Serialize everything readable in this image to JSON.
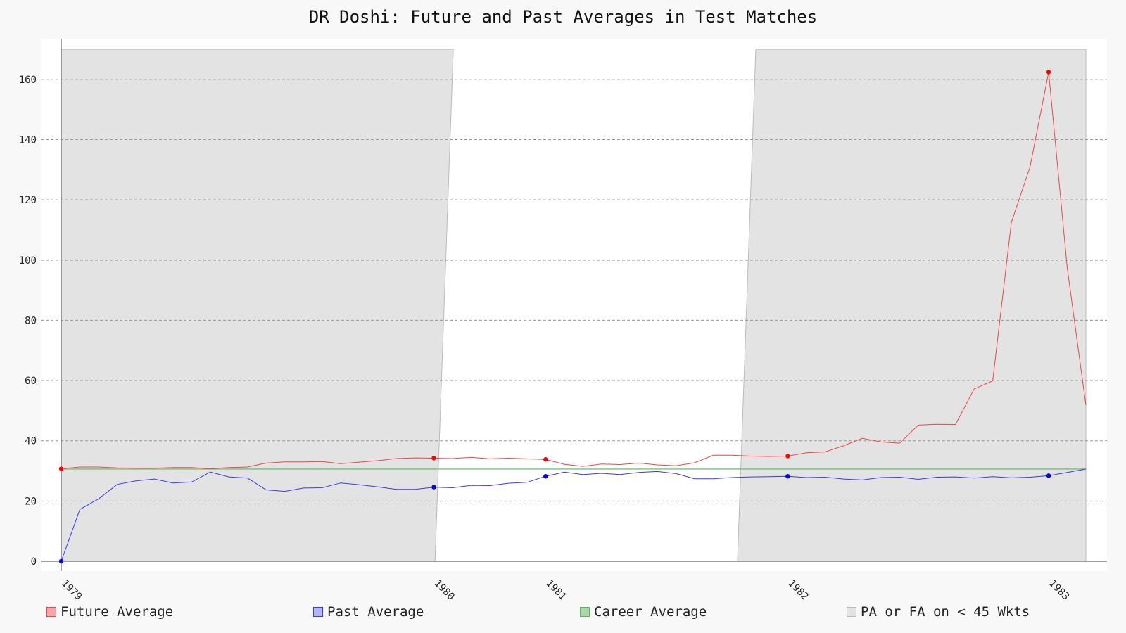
{
  "chart_data": {
    "type": "line",
    "title": "DR Doshi: Future and Past Averages in Test Matches",
    "xlabel": "",
    "ylabel": "",
    "ylim": [
      0,
      170
    ],
    "y_ticks": [
      0,
      20,
      40,
      60,
      80,
      100,
      120,
      140,
      160
    ],
    "x_ticks": [
      "1979",
      "1980",
      "1981",
      "1982",
      "1983"
    ],
    "grid": true,
    "legend_position": "bottom",
    "matches": 56,
    "tick_match_index": [
      0,
      20,
      26,
      39,
      53
    ],
    "shaded_bands": [
      {
        "label": "PA or FA on < 45 Wkts",
        "from_match": 0,
        "to_match": 21.5
      },
      {
        "label": "PA or FA on < 45 Wkts",
        "from_match": 36.3,
        "to_match": 55
      }
    ],
    "series": [
      {
        "name": "Future Average",
        "color": "#e8474b",
        "marker_indices": [
          0,
          20,
          26,
          39,
          53
        ],
        "values": [
          30.7,
          31.3,
          31.3,
          31.0,
          30.9,
          30.9,
          31.1,
          31.1,
          30.7,
          31.1,
          31.3,
          32.6,
          33.0,
          33.0,
          33.1,
          32.4,
          32.9,
          33.4,
          34.1,
          34.3,
          34.2,
          34.1,
          34.5,
          34.0,
          34.2,
          34.0,
          33.8,
          32.2,
          31.5,
          32.3,
          32.1,
          32.6,
          32.0,
          31.7,
          32.7,
          35.2,
          35.2,
          34.9,
          34.8,
          34.9,
          36.0,
          36.3,
          38.4,
          40.8,
          39.6,
          39.2,
          45.2,
          45.5,
          45.4,
          57.2,
          59.9,
          112.5,
          130.9,
          162.4,
          97.4,
          51.8
        ]
      },
      {
        "name": "Past Average",
        "color": "#3a3af0",
        "marker_indices": [
          0,
          20,
          26,
          39,
          53
        ],
        "values": [
          0.0,
          17.2,
          20.7,
          25.5,
          26.7,
          27.3,
          26.0,
          26.3,
          29.6,
          28.0,
          27.6,
          23.7,
          23.2,
          24.3,
          24.4,
          26.0,
          25.4,
          24.7,
          23.9,
          23.9,
          24.6,
          24.4,
          25.2,
          25.1,
          25.9,
          26.2,
          28.2,
          29.6,
          28.8,
          29.2,
          28.8,
          29.5,
          29.8,
          29.1,
          27.4,
          27.4,
          27.8,
          28.0,
          28.1,
          28.2,
          27.8,
          27.9,
          27.3,
          27.0,
          27.8,
          27.9,
          27.2,
          27.9,
          28.0,
          27.6,
          28.1,
          27.7,
          27.9,
          28.4,
          29.5,
          30.6
        ]
      },
      {
        "name": "Career Average",
        "color": "#5fb55f",
        "values_constant": 30.6
      }
    ]
  },
  "legend": {
    "future": "Future Average",
    "past": "Past Average",
    "career": "Career Average",
    "shade": "PA or FA on < 45 Wkts"
  },
  "colors": {
    "plot_bg": "#ffffff",
    "shade": "#e3e3e3",
    "grid": "#999999",
    "axis": "#666666",
    "future_swatch": "#f4a7a7",
    "past_swatch": "#b3b3f5",
    "career_swatch": "#a9d8a9",
    "shade_swatch": "#e3e3e3"
  }
}
